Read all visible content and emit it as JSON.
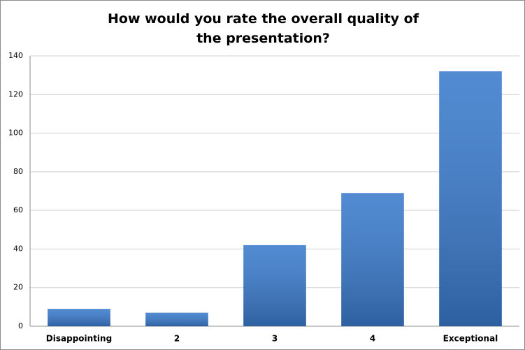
{
  "chart_data": {
    "type": "bar",
    "title": "How would you rate the overall quality of the presentation?",
    "categories": [
      "Disappointing",
      "2",
      "3",
      "4",
      "Exceptional"
    ],
    "values": [
      9,
      7,
      42,
      69,
      132
    ],
    "color": "#3a7bcc",
    "ylim": [
      0,
      140
    ],
    "yticks": [
      0,
      20,
      40,
      60,
      80,
      100,
      120,
      140
    ],
    "grid": true
  }
}
